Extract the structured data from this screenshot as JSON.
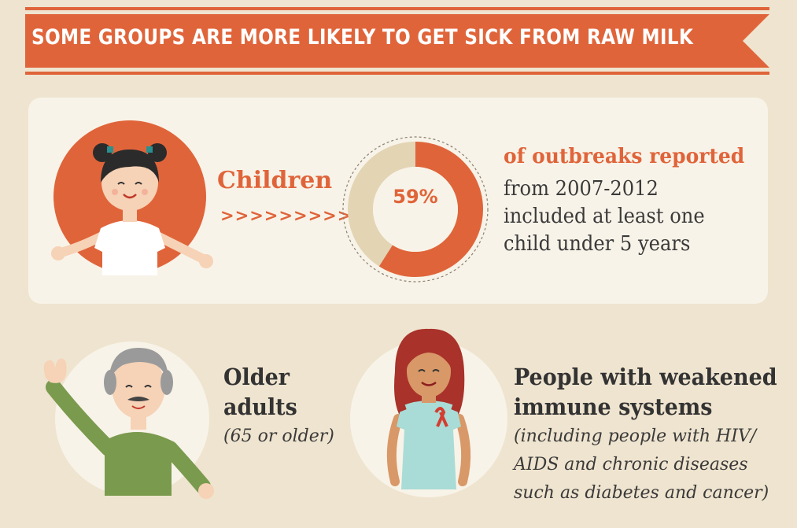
{
  "banner": {
    "title": "SOME GROUPS ARE MORE LIKELY TO GET SICK FROM RAW MILK"
  },
  "children": {
    "label": "Children",
    "arrows": ">>>>>>>>>",
    "percent_text": "59%",
    "percent_value": 59,
    "stat_heading": "of outbreaks reported",
    "stat_lines": [
      "from 2007-2012",
      "included at least one",
      "child under 5 years"
    ]
  },
  "older": {
    "title_lines": [
      "Older",
      "adults"
    ],
    "note": "(65 or older)"
  },
  "immune": {
    "title_lines": [
      "People with weakened",
      "immune systems"
    ],
    "note_lines": [
      "(including  people with HIV/",
      "AIDS and chronic diseases",
      "such as diabetes and cancer)"
    ]
  },
  "colors": {
    "accent": "#e0643a",
    "background": "#efe4cf",
    "panel": "#f8f3e8",
    "donut_rest": "#e3d4b4",
    "text": "#333333"
  },
  "icons": [
    "child-illustration",
    "older-adult-illustration",
    "woman-ribbon-illustration",
    "donut-chart"
  ]
}
